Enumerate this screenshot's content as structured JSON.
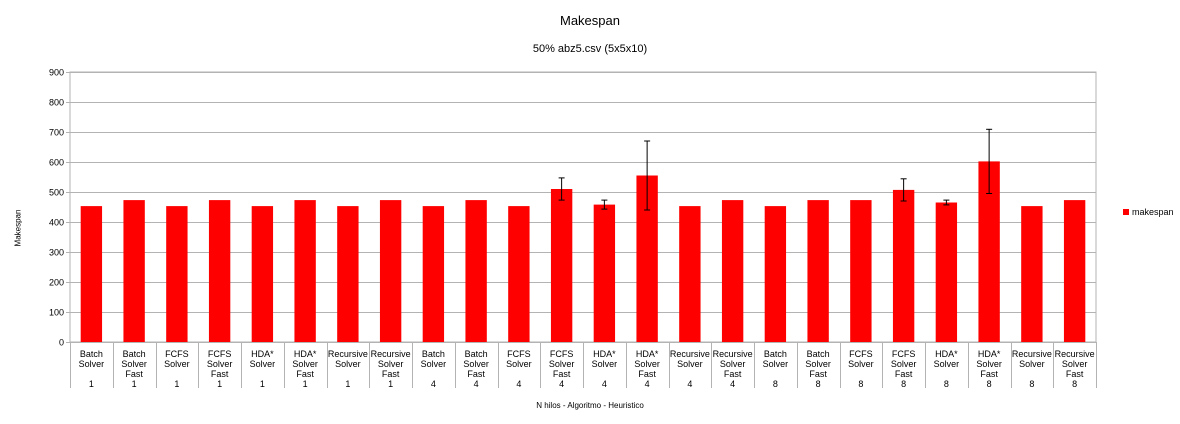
{
  "chart_data": {
    "type": "bar",
    "title": "Makespan",
    "subtitle": "50% abz5.csv (5x5x10)",
    "xlabel": "N hilos - Algoritmo - Heuristico",
    "ylabel": "Makespan",
    "ylim": [
      0,
      900
    ],
    "yticks": [
      0,
      100,
      200,
      300,
      400,
      500,
      600,
      700,
      800,
      900
    ],
    "grid": true,
    "legend_position": "right",
    "bar_color": "#ff0000",
    "categories": [
      {
        "algorithm": [
          "Batch",
          "Solver"
        ],
        "threads": "1"
      },
      {
        "algorithm": [
          "Batch",
          "Solver",
          "Fast"
        ],
        "threads": "1"
      },
      {
        "algorithm": [
          "FCFS",
          "Solver"
        ],
        "threads": "1"
      },
      {
        "algorithm": [
          "FCFS",
          "Solver",
          "Fast"
        ],
        "threads": "1"
      },
      {
        "algorithm": [
          "HDA*",
          "Solver"
        ],
        "threads": "1"
      },
      {
        "algorithm": [
          "HDA*",
          "Solver",
          "Fast"
        ],
        "threads": "1"
      },
      {
        "algorithm": [
          "Recursive",
          "Solver"
        ],
        "threads": "1"
      },
      {
        "algorithm": [
          "Recursive",
          "Solver",
          "Fast"
        ],
        "threads": "1"
      },
      {
        "algorithm": [
          "Batch",
          "Solver"
        ],
        "threads": "4"
      },
      {
        "algorithm": [
          "Batch",
          "Solver",
          "Fast"
        ],
        "threads": "4"
      },
      {
        "algorithm": [
          "FCFS",
          "Solver"
        ],
        "threads": "4"
      },
      {
        "algorithm": [
          "FCFS",
          "Solver",
          "Fast"
        ],
        "threads": "4"
      },
      {
        "algorithm": [
          "HDA*",
          "Solver"
        ],
        "threads": "4"
      },
      {
        "algorithm": [
          "HDA*",
          "Solver",
          "Fast"
        ],
        "threads": "4"
      },
      {
        "algorithm": [
          "Recursive",
          "Solver"
        ],
        "threads": "4"
      },
      {
        "algorithm": [
          "Recursive",
          "Solver",
          "Fast"
        ],
        "threads": "4"
      },
      {
        "algorithm": [
          "Batch",
          "Solver"
        ],
        "threads": "8"
      },
      {
        "algorithm": [
          "Batch",
          "Solver",
          "Fast"
        ],
        "threads": "8"
      },
      {
        "algorithm": [
          "FCFS",
          "Solver"
        ],
        "threads": "8"
      },
      {
        "algorithm": [
          "FCFS",
          "Solver",
          "Fast"
        ],
        "threads": "8"
      },
      {
        "algorithm": [
          "HDA*",
          "Solver"
        ],
        "threads": "8"
      },
      {
        "algorithm": [
          "HDA*",
          "Solver",
          "Fast"
        ],
        "threads": "8"
      },
      {
        "algorithm": [
          "Recursive",
          "Solver"
        ],
        "threads": "8"
      },
      {
        "algorithm": [
          "Recursive",
          "Solver",
          "Fast"
        ],
        "threads": "8"
      }
    ],
    "series": [
      {
        "name": "makespan",
        "values": [
          453,
          473,
          453,
          473,
          453,
          473,
          453,
          473,
          453,
          473,
          453,
          510,
          458,
          555,
          453,
          473,
          453,
          473,
          473,
          507,
          465,
          602,
          453,
          473
        ],
        "error": [
          0,
          0,
          0,
          0,
          0,
          0,
          0,
          0,
          0,
          0,
          0,
          37,
          15,
          115,
          0,
          0,
          0,
          0,
          0,
          37,
          8,
          107,
          0,
          0
        ]
      }
    ]
  }
}
